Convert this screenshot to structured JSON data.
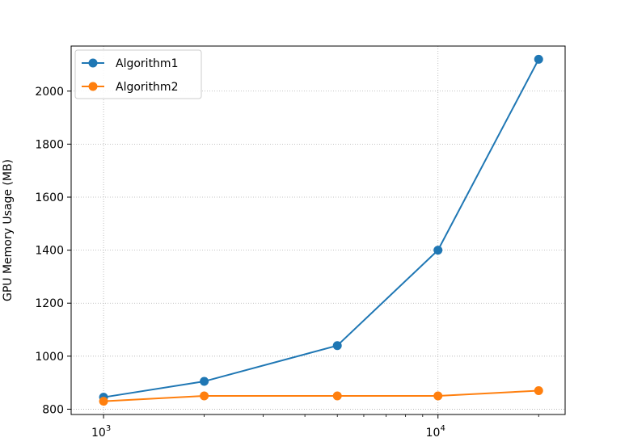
{
  "chart_data": {
    "type": "line",
    "xscale": "log",
    "title": "",
    "xlabel": "",
    "ylabel": "GPU Memory Usage (MB)",
    "xlim": [
      800,
      24000
    ],
    "ylim": [
      780,
      2170
    ],
    "grid": true,
    "legend_position": "upper-left",
    "x": [
      1000,
      2000,
      5000,
      10000,
      20000
    ],
    "series": [
      {
        "name": "Algorithm1",
        "color": "#1f77b4",
        "values": [
          845,
          905,
          1040,
          1400,
          2120
        ]
      },
      {
        "name": "Algorithm2",
        "color": "#ff7f0e",
        "values": [
          830,
          850,
          850,
          850,
          870
        ]
      }
    ],
    "y_ticks": [
      800,
      1000,
      1200,
      1400,
      1600,
      1800,
      2000
    ],
    "y_tick_labels": [
      "800",
      "1000",
      "1200",
      "1400",
      "1600",
      "1800",
      "2000"
    ],
    "x_major_ticks": [
      {
        "value": 1000,
        "base": "10",
        "exp": "3"
      },
      {
        "value": 10000,
        "base": "10",
        "exp": "4"
      }
    ],
    "x_minor_ticks": [
      2000,
      3000,
      4000,
      5000,
      6000,
      7000,
      8000,
      9000,
      20000
    ]
  }
}
